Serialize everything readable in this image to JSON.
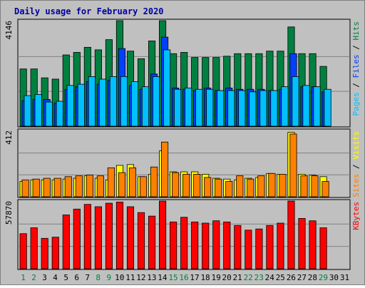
{
  "chart_data": {
    "type": "bar",
    "title": "Daily usage for February 2020",
    "days": [
      "1",
      "2",
      "3",
      "4",
      "5",
      "6",
      "7",
      "8",
      "9",
      "10",
      "11",
      "12",
      "13",
      "14",
      "15",
      "16",
      "17",
      "18",
      "19",
      "20",
      "21",
      "22",
      "23",
      "24",
      "25",
      "26",
      "27",
      "28",
      "29",
      "30",
      "31"
    ],
    "weekend_days": [
      "1",
      "2",
      "8",
      "9",
      "15",
      "16",
      "22",
      "23",
      "29"
    ],
    "panels": [
      {
        "id": "hits",
        "ymax_label": "4146",
        "ymax": 4146,
        "series": [
          {
            "name": "Hits",
            "color": "#008040",
            "values": [
              2250,
              2250,
              1900,
              1850,
              2800,
              2900,
              3100,
              3000,
              3400,
              4146,
              2950,
              2650,
              3350,
              4146,
              2850,
              2900,
              2700,
              2700,
              2700,
              2750,
              2850,
              2850,
              2850,
              2950,
              2950,
              3900,
              2850,
              2850,
              2350,
              null,
              null
            ]
          },
          {
            "name": "Files",
            "color": "#0040ff",
            "values": [
              1000,
              1050,
              1050,
              900,
              1450,
              1550,
              1750,
              1650,
              1800,
              3050,
              1600,
              1450,
              2050,
              3500,
              1500,
              1450,
              1400,
              1500,
              1400,
              1500,
              1450,
              1450,
              1450,
              1400,
              1450,
              2850,
              1550,
              1550,
              1350,
              null,
              null
            ]
          },
          {
            "name": "Pages",
            "color": "#00c0ff",
            "values": [
              1200,
              1250,
              950,
              980,
              1600,
              1650,
              1950,
              1850,
              1950,
              1950,
              1750,
              1550,
              1950,
              3000,
              1450,
              1500,
              1450,
              1450,
              1400,
              1400,
              1400,
              1350,
              1400,
              1400,
              1550,
              1950,
              1600,
              1550,
              1450,
              null,
              null
            ]
          }
        ]
      },
      {
        "id": "visits",
        "ymax_label": "412",
        "ymax": 412,
        "series": [
          {
            "name": "Visits",
            "color": "#ffff00",
            "values": [
              95,
              105,
              105,
              105,
              110,
              115,
              130,
              115,
              105,
              195,
              200,
              125,
              140,
              285,
              155,
              155,
              155,
              140,
              115,
              110,
              105,
              115,
              120,
              145,
              140,
              400,
              140,
              135,
              125,
              null,
              null
            ]
          },
          {
            "name": "Sites",
            "color": "#ff8000",
            "values": [
              105,
              110,
              115,
              115,
              125,
              130,
              135,
              130,
              180,
              150,
              180,
              125,
              185,
              340,
              150,
              140,
              140,
              120,
              110,
              95,
              130,
              110,
              130,
              145,
              140,
              390,
              130,
              130,
              95,
              null,
              null
            ]
          }
        ]
      },
      {
        "id": "kbytes",
        "ymax_label": "57870",
        "ymax": 57870,
        "series": [
          {
            "name": "KBytes",
            "color": "#ff0000",
            "values": [
              30000,
              35000,
              26000,
              27000,
              46000,
              51000,
              55000,
              53000,
              56000,
              57000,
              53000,
              48000,
              45000,
              57870,
              40000,
              44000,
              40000,
              39000,
              41000,
              40000,
              37000,
              33000,
              34000,
              37000,
              39000,
              57870,
              43000,
              41000,
              35000,
              null,
              null
            ]
          }
        ]
      }
    ],
    "right_labels": [
      {
        "panel": "hits",
        "parts": [
          {
            "text": "Pages",
            "color": "#00c0ff"
          },
          {
            "text": " / ",
            "color": "#000000"
          },
          {
            "text": "Files",
            "color": "#0040ff"
          },
          {
            "text": " / ",
            "color": "#000000"
          },
          {
            "text": "Hits",
            "color": "#008040"
          }
        ]
      },
      {
        "panel": "visits",
        "parts": [
          {
            "text": "Sites",
            "color": "#ff8000"
          },
          {
            "text": " / ",
            "color": "#000000"
          },
          {
            "text": "Visits",
            "color": "#ffff00"
          }
        ]
      },
      {
        "panel": "kbytes",
        "parts": [
          {
            "text": "KBytes",
            "color": "#ff0000"
          }
        ]
      }
    ],
    "colors": {
      "background": "#c0c0c0",
      "title": "#0000a0",
      "weekday_label": "#000000",
      "weekend_label": "#008040"
    }
  }
}
